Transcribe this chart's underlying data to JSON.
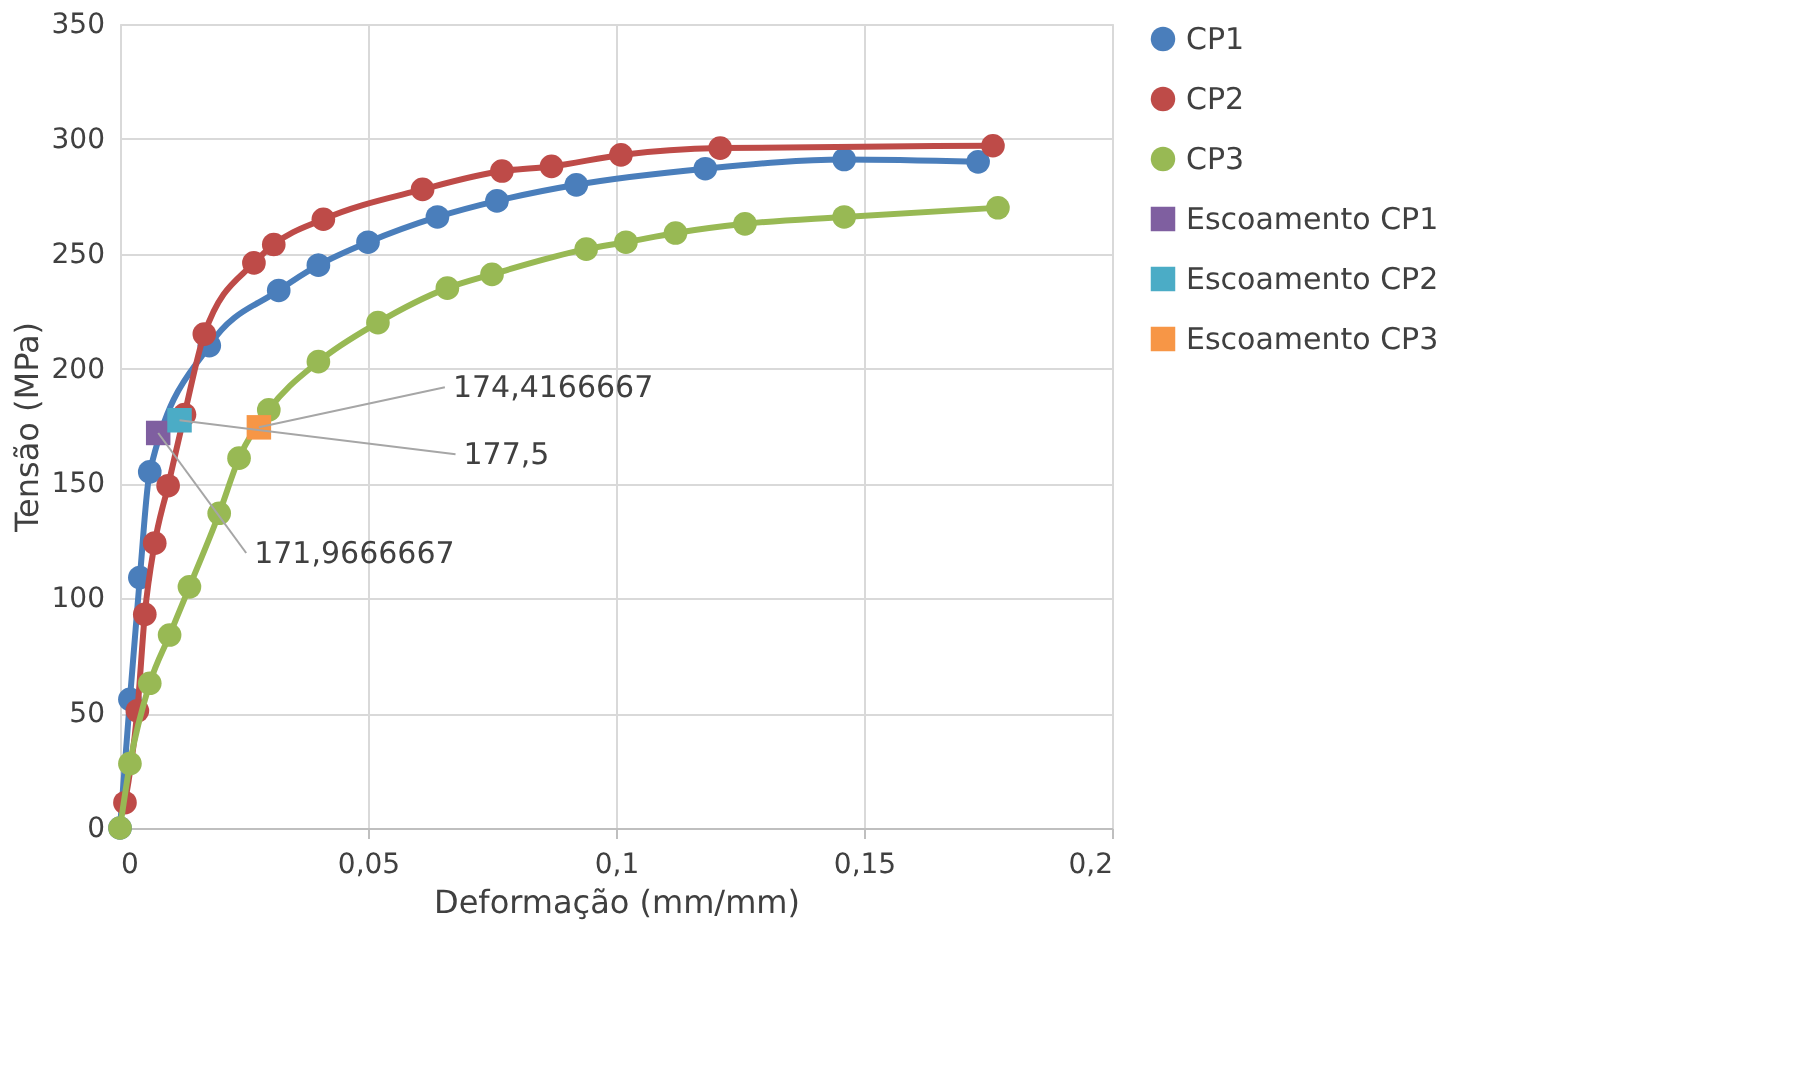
{
  "chart_data": {
    "type": "line",
    "xlabel": "Deformação (mm/mm)",
    "ylabel": "Tensão (MPa)",
    "xlim": [
      0,
      0.2
    ],
    "xticks": [
      {
        "value": 0,
        "label": "0"
      },
      {
        "value": 0.05,
        "label": "0,05"
      },
      {
        "value": 0.1,
        "label": "0,1"
      },
      {
        "value": 0.15,
        "label": "0,15"
      },
      {
        "value": 0.2,
        "label": "0,2"
      }
    ],
    "ylim": [
      0,
      350
    ],
    "yticks": [
      0,
      50,
      100,
      150,
      200,
      250,
      300,
      350
    ],
    "grid": true,
    "legend": "right",
    "marker": "circle",
    "series": [
      {
        "name": "CP1",
        "color": "#4a7ebb",
        "x": [
          0,
          0.002,
          0.004,
          0.006,
          0.018,
          0.032,
          0.04,
          0.05,
          0.064,
          0.076,
          0.092,
          0.118,
          0.146,
          0.173
        ],
        "values": [
          0,
          56,
          109,
          155,
          210,
          234,
          245,
          255,
          266,
          273,
          280,
          287,
          291,
          290
        ]
      },
      {
        "name": "CP2",
        "color": "#be4b48",
        "x": [
          0.001,
          0.0035,
          0.005,
          0.007,
          0.0097,
          0.013,
          0.017,
          0.027,
          0.031,
          0.041,
          0.061,
          0.077,
          0.087,
          0.101,
          0.121,
          0.176
        ],
        "values": [
          11,
          51,
          93,
          124,
          149,
          180,
          215,
          246,
          254,
          265,
          278,
          286,
          288,
          293,
          296,
          297
        ]
      },
      {
        "name": "CP3",
        "color": "#98b954",
        "x": [
          0,
          0.002,
          0.006,
          0.01,
          0.014,
          0.02,
          0.024,
          0.03,
          0.04,
          0.052,
          0.066,
          0.075,
          0.094,
          0.102,
          0.112,
          0.126,
          0.146,
          0.177
        ],
        "values": [
          0,
          28,
          63,
          84,
          105,
          137,
          161,
          182,
          203,
          220,
          235,
          241,
          252,
          255,
          259,
          263,
          266,
          270
        ]
      },
      {
        "name": "Escoamento CP1",
        "color": "#7f5fa0",
        "type": "scatter",
        "marker": "square",
        "x": [
          0.0077
        ],
        "values": [
          171.9666667
        ]
      },
      {
        "name": "Escoamento CP2",
        "color": "#4bacc6",
        "type": "scatter",
        "marker": "square",
        "x": [
          0.012
        ],
        "values": [
          177.5
        ]
      },
      {
        "name": "Escoamento CP3",
        "color": "#f79646",
        "type": "scatter",
        "marker": "square",
        "x": [
          0.028
        ],
        "values": [
          174.4166667
        ]
      }
    ],
    "annotations": [
      {
        "text": "171,9666667",
        "x": 0.0077,
        "y": 171.9666667
      },
      {
        "text": "177,5",
        "x": 0.012,
        "y": 177.5
      },
      {
        "text": "174,4166667",
        "x": 0.028,
        "y": 174.4166667
      }
    ]
  }
}
